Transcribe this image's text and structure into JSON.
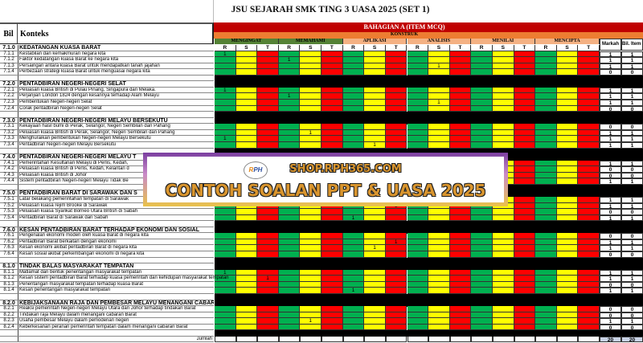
{
  "title": "JSU SEJARAH SMK TING 3 UASA 2025 (SET 1)",
  "header": {
    "bil": "Bil",
    "konteks": "Konteks",
    "bahagian": "BAHAGIAN A (ITEM MCQ)",
    "konstruk": "KONSTRUK",
    "markah": "Markah",
    "bil_item": "Bil. Item",
    "levels": [
      "MENGINGAT",
      "MEMAHAMI",
      "APLIKASI",
      "ANALISIS",
      "MENILAI",
      "MENCIPTA"
    ],
    "rst": [
      "R",
      "S",
      "T"
    ]
  },
  "colors": {
    "R": "#00b050",
    "S": "#ffff00",
    "T": "#ff0000",
    "bahagian": "#c00000",
    "konstruk": "#ed7d31",
    "level_green": "#548235",
    "level_salmon": "#f4b183",
    "section": "#000000"
  },
  "rows": [
    {
      "bil": "7.1.0",
      "text": "KEDATANGAN KUASA BARAT",
      "type": "first"
    },
    {
      "bil": "7.1.1",
      "text": "Kestabilan dan kemakmuran negara kita",
      "one": 0,
      "markah": "1",
      "item": "1"
    },
    {
      "bil": "7.1.2",
      "text": "Faktor kedatangan kuasa Barat ke negara kita",
      "one": 3,
      "markah": "1",
      "item": "1"
    },
    {
      "bil": "7.1.3",
      "text": "Persaingan antara kuasa Barat untuk mendapatkan tanah jajahan",
      "one": 10,
      "markah": "1",
      "item": "1"
    },
    {
      "bil": "7.1.4",
      "text": "Perbezaan strategi kuasa Barat untuk menguasai negara kita",
      "markah": "0",
      "item": "0"
    },
    {
      "bil": "",
      "text": "",
      "type": "blank"
    },
    {
      "bil": "7.2.0",
      "text": "PENTADBIRAN NEGERI-NEGERI SELAT",
      "type": "sec"
    },
    {
      "bil": "7.2.1",
      "text": "Peluasan kuasa British di Pulau Pinang, Singapura dan Melaka.",
      "one": 0,
      "markah": "1",
      "item": "1"
    },
    {
      "bil": "7.2.2",
      "text": "Perjanjian London 1824 dengan kesannya terhadap Alam Melayu",
      "one": 3,
      "markah": "1",
      "item": "1"
    },
    {
      "bil": "7.2.3",
      "text": "Pembentukan Negeri-negeri Selat",
      "one": 10,
      "markah": "1",
      "item": "1"
    },
    {
      "bil": "7.2.4",
      "text": "Corak pentadbiran Negeri-negeri Selat",
      "markah": "0",
      "item": "0"
    },
    {
      "bil": "",
      "text": "",
      "type": "blank"
    },
    {
      "bil": "7.3.0",
      "text": "PENTADBIRAN NEGERI-NEGERI MELAYU BERSEKUTU",
      "type": "sec"
    },
    {
      "bil": "7.3.1",
      "text": "Kekayaan hasil bumi di Perak, Selangor, Negeri Sembilan dan Pahang",
      "markah": "0",
      "item": "0"
    },
    {
      "bil": "7.3.2",
      "text": "Peluasan kuasa British di Perak, Selangor, Negeri Sembilan dan Pahang",
      "one": 4,
      "markah": "1",
      "item": "1"
    },
    {
      "bil": "7.3.3",
      "text": "Menghuraikan pembentukan Negeri-negeri Melayu Bersekutu",
      "one": 0,
      "markah": "1",
      "item": "1"
    },
    {
      "bil": "7.3.4",
      "text": "Pentadbiran Negeri-negeri Melayu Bersekutu",
      "one": 7,
      "markah": "1",
      "item": "1"
    },
    {
      "bil": "",
      "text": "",
      "type": "blank"
    },
    {
      "bil": "7.4.0",
      "text": "PENTADBIRAN NEGERI-NEGERI MELAYU T",
      "type": "sec"
    },
    {
      "bil": "7.4.1",
      "text": "Pemerintahan Kesultanan Melayu di Perlis, Kedah,",
      "markah": "1",
      "item": "1"
    },
    {
      "bil": "7.4.2",
      "text": "Peluasan kuasa British di Perlis, Kedah, Kelantan d",
      "markah": "0",
      "item": "0"
    },
    {
      "bil": "7.4.3",
      "text": "Peluasan kuasa British di Johor",
      "markah": "0",
      "item": "0"
    },
    {
      "bil": "7.4.4",
      "text": "Sistem pentadbiran Negeri-negeri Melayu Tidak Be",
      "markah": "1",
      "item": "1"
    },
    {
      "bil": "",
      "text": "",
      "type": "blank"
    },
    {
      "bil": "7.5.0",
      "text": "PENTADBIRAN BARAT DI SARAWAK DAN S",
      "type": "sec"
    },
    {
      "bil": "7.5.1",
      "text": "Latar belakang pemerintahan tempatan di Sarawak",
      "markah": "1",
      "item": "1"
    },
    {
      "bil": "7.5.2",
      "text": "Peluasan kuasa rejim Brooke di Sarawak",
      "one": 8,
      "markah": "1",
      "item": "1"
    },
    {
      "bil": "7.5.3",
      "text": "Peluasan kuasa Syarikat Borneo Utara British di Sabah",
      "markah": "0",
      "item": "0"
    },
    {
      "bil": "7.5.4",
      "text": "Pentadbiran Barat di Sarawak dan Sabah",
      "one": 6,
      "markah": "1",
      "item": "1"
    },
    {
      "bil": "",
      "text": "",
      "type": "blank"
    },
    {
      "bil": "7.6.0",
      "text": "KESAN PENTADBIRAN BARAT TERHADAP EKONOMI DAN SOSIAL",
      "type": "sec"
    },
    {
      "bil": "7.6.1",
      "text": "Pengenalan ekonomi moden oleh kuasa Barat di negara kita",
      "markah": "0",
      "item": "0"
    },
    {
      "bil": "7.6.2",
      "text": "Pentadbiran Barat berkaitan dengan ekonomi",
      "one": 8,
      "markah": "1",
      "item": "1"
    },
    {
      "bil": "7.6.3",
      "text": "Kesan ekonomi akibat pentadbiran Barat di negara kita",
      "one": 7,
      "markah": "1",
      "item": "1"
    },
    {
      "bil": "7.6.4",
      "text": "Kesan sosial akibat perkembangan ekonomi di negara kita",
      "markah": "0",
      "item": "0"
    },
    {
      "bil": "",
      "text": "",
      "type": "blank"
    },
    {
      "bil": "8.1.0",
      "text": "TINDAK BALAS MASYARAKAT TEMPATAN",
      "type": "sec"
    },
    {
      "bil": "8.1.1",
      "text": "Matlamat dan bentuk penentangan masyarakat tempatan",
      "one": 0,
      "markah": "1",
      "item": "1"
    },
    {
      "bil": "8.1.2",
      "text": "Kesan sistem pentadbiran Barat terhadap kuasa pemerintah dan kehidupan masyarakat tempatan",
      "one": 2,
      "markah": "1",
      "item": "1",
      "overflow": true
    },
    {
      "bil": "8.1.3",
      "text": "Penentangan masyarakat tempatan terhadap kuasa Barat",
      "markah": "0",
      "item": "0"
    },
    {
      "bil": "8.1.4",
      "text": "Kesan penentangan masyarakat tempatan",
      "one": 6,
      "markah": "1",
      "item": "1"
    },
    {
      "bil": "",
      "text": "",
      "type": "blank"
    },
    {
      "bil": "8.2.0",
      "text": "KEBIJAKSANAAN RAJA DAN PEMBESAR MELAYU MENANGANI CABARAN BARAT",
      "type": "sec"
    },
    {
      "bil": "8.2.1",
      "text": "Reaksi pemerintah Negeri-negeri Melayu Utara dan Johor terhadap tindakan Barat",
      "markah": "0",
      "item": "0"
    },
    {
      "bil": "8.2.2",
      "text": "Tindakan raja Melayu dalam menangani cabaran Barat",
      "markah": "0",
      "item": "0"
    },
    {
      "bil": "8.2.3",
      "text": "Usaha pembesar Melayu dalam pemodenan negeri",
      "one": 4,
      "markah": "1",
      "item": "1"
    },
    {
      "bil": "8.2.4",
      "text": "Keberkesanan peranan pemerintah tempatan dalam menangani cabaran Barat",
      "markah": "0",
      "item": "0"
    },
    {
      "bil": "",
      "text": "",
      "type": "blank"
    },
    {
      "bil": "",
      "text": "Jumlah",
      "type": "total",
      "markah": "20",
      "item": "20"
    }
  ],
  "banner": {
    "site": "SHOP.RPH365.COM",
    "headline": "CONTOH SOALAN PPT & UASA 2025",
    "logo": "RPH"
  }
}
